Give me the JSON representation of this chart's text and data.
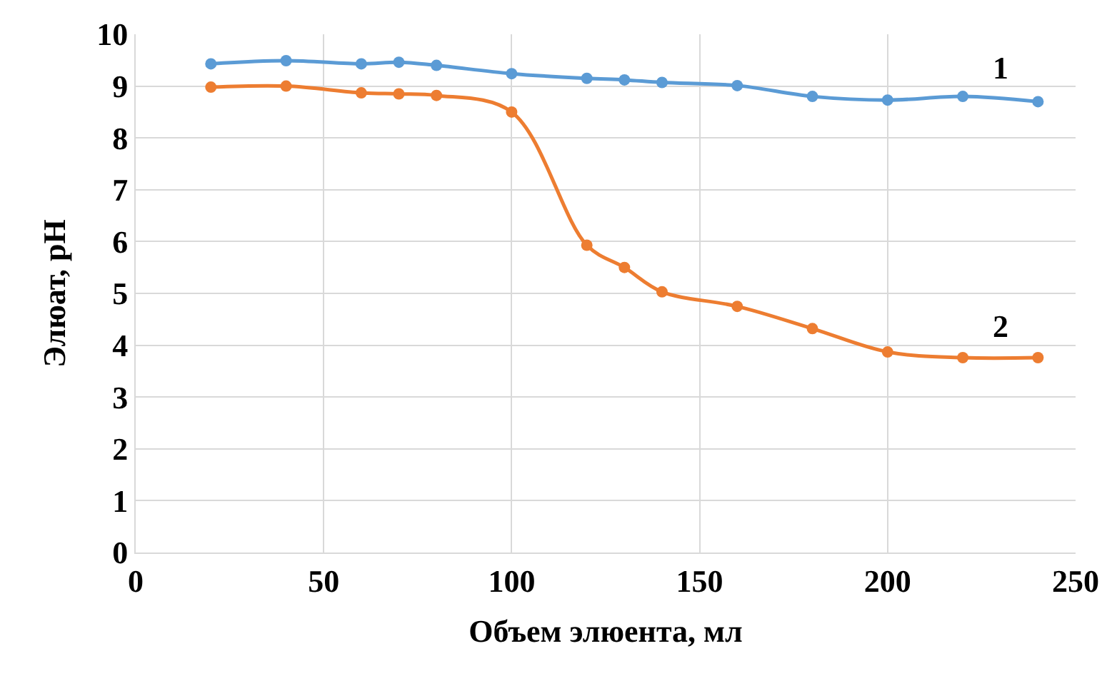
{
  "chart_data": {
    "type": "line",
    "xlabel": "Объем элюента, мл",
    "ylabel": "Элюат, pH",
    "xlim": [
      0,
      250
    ],
    "xticks": [
      0,
      50,
      100,
      150,
      200,
      250
    ],
    "ylim": [
      0,
      10
    ],
    "yticks": [
      0,
      1,
      2,
      3,
      4,
      5,
      6,
      7,
      8,
      9,
      10
    ],
    "grid": true,
    "marker": "circle",
    "line_style": "solid",
    "x": [
      20,
      40,
      60,
      70,
      80,
      100,
      120,
      130,
      140,
      160,
      180,
      200,
      220,
      240
    ],
    "series": [
      {
        "color": "#5b9bd5",
        "values": [
          9.43,
          9.49,
          9.43,
          9.46,
          9.4,
          9.24,
          9.15,
          9.12,
          9.07,
          9.01,
          8.8,
          8.73,
          8.8,
          8.7
        ]
      },
      {
        "color": "#ed7d31",
        "values": [
          8.98,
          9.0,
          8.87,
          8.85,
          8.82,
          8.5,
          5.93,
          5.5,
          5.03,
          4.75,
          4.32,
          3.87,
          3.76,
          3.76
        ]
      }
    ],
    "annotations": [
      {
        "text": "1",
        "x": 230,
        "y": 8.75
      },
      {
        "text": "2",
        "x": 230,
        "y": 3.76
      }
    ]
  }
}
